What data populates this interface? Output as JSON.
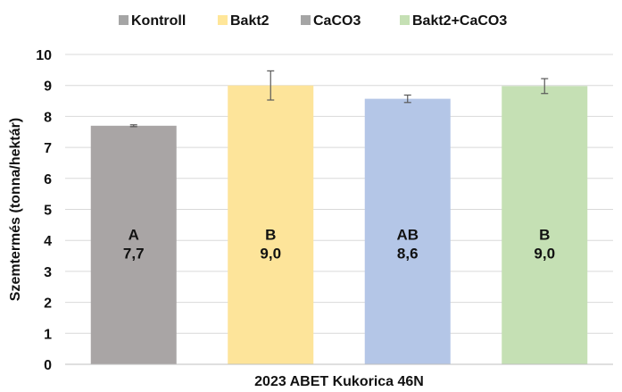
{
  "chart_data": {
    "type": "bar",
    "xlabel": "2023 ABET Kukorica 46N",
    "ylabel": "Szemtermés (tonna/hektár)",
    "ylim": [
      0,
      10
    ],
    "yticks": [
      "0",
      "1",
      "2",
      "3",
      "4",
      "5",
      "6",
      "7",
      "8",
      "9",
      "10"
    ],
    "grid": true,
    "legend_position": "top",
    "categories": [
      "Kontroll",
      "Bakt2",
      "CaCO3",
      "Bakt2+CaCO3"
    ],
    "legend_colors": [
      "#a5a5a5",
      "#ffe699",
      "#a5a5a5",
      "#c5e0b4"
    ],
    "series": [
      {
        "name": "Kontroll",
        "value": 7.7,
        "error": 0.03,
        "color": "#a9a5a5",
        "letter": "A",
        "value_label": "7,7"
      },
      {
        "name": "Bakt2",
        "value": 9.0,
        "error": 0.47,
        "color": "#fde49a",
        "letter": "B",
        "value_label": "9,0"
      },
      {
        "name": "CaCO3",
        "value": 8.57,
        "error": 0.12,
        "color": "#b4c6e7",
        "letter": "AB",
        "value_label": "8,6"
      },
      {
        "name": "Bakt2+CaCO3",
        "value": 8.98,
        "error": 0.24,
        "color": "#c5e0b4",
        "letter": "B",
        "value_label": "9,0"
      }
    ]
  }
}
